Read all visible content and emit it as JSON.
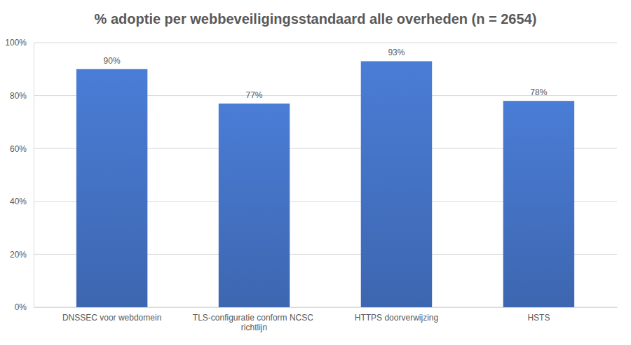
{
  "chart_data": {
    "type": "bar",
    "title": "% adoptie per webbeveiligingsstandaard alle overheden (n = 2654)",
    "categories": [
      "DNSSEC voor webdomein",
      "TLS-configuratie conform NCSC richtlijn",
      "HTTPS doorverwijzing",
      "HSTS"
    ],
    "values": [
      90,
      77,
      93,
      78
    ],
    "value_labels": [
      "90%",
      "77%",
      "93%",
      "78%"
    ],
    "data_labels": true,
    "color": "#4472c4",
    "ylim": [
      0,
      100
    ],
    "yticks": [
      {
        "value": 0,
        "label": "0%"
      },
      {
        "value": 20,
        "label": "20%"
      },
      {
        "value": 40,
        "label": "40%"
      },
      {
        "value": 60,
        "label": "60%"
      },
      {
        "value": 80,
        "label": "80%"
      },
      {
        "value": 100,
        "label": "100%"
      }
    ],
    "grid": true
  }
}
